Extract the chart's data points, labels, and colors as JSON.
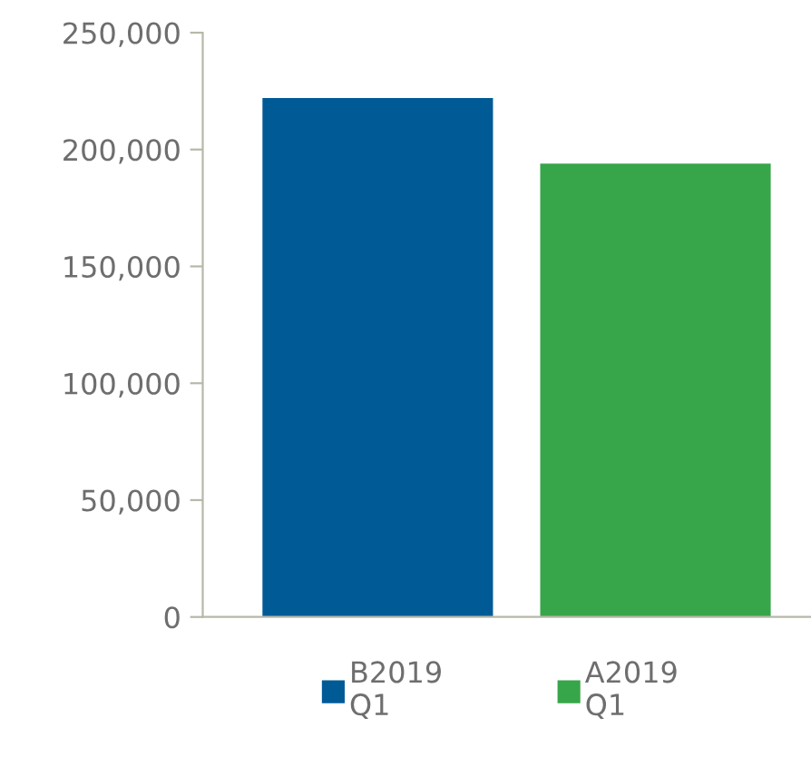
{
  "chart_data": {
    "type": "bar",
    "categories": [
      null,
      null
    ],
    "series": [
      {
        "name": "B2019 Q1",
        "color": "#005a96",
        "values": [
          222000,
          null
        ]
      },
      {
        "name": "A2019 Q1",
        "color": "#37a64a",
        "values": [
          null,
          194000
        ]
      }
    ],
    "ylim": [
      0,
      250000
    ],
    "yticks": [
      {
        "value": 0,
        "label": "0"
      },
      {
        "value": 50000,
        "label": "50,000"
      },
      {
        "value": 100000,
        "label": "100,000"
      },
      {
        "value": 150000,
        "label": "150,000"
      },
      {
        "value": 200000,
        "label": "200,000"
      },
      {
        "value": 250000,
        "label": "250,000"
      }
    ],
    "grid": false,
    "legend": "bottom",
    "tick_labels": "y"
  }
}
